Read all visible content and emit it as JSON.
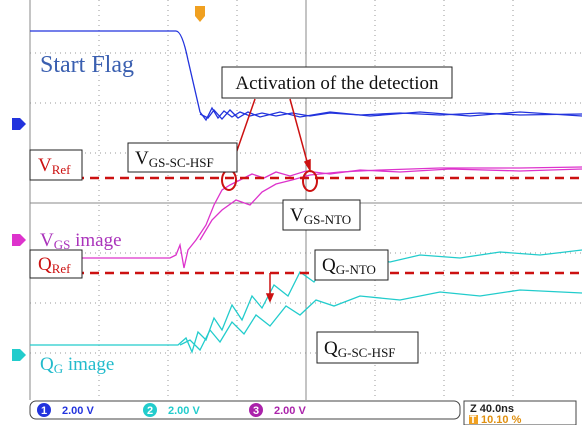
{
  "traces": {
    "start_flag": "Start Flag",
    "activation": "Activation of the detection",
    "v_ref": {
      "base": "V",
      "sub": "Ref"
    },
    "v_gs_sc_hsf": {
      "base": "V",
      "sub": "GS-SC-HSF"
    },
    "v_gs_nto": {
      "base": "V",
      "sub": "GS-NTO"
    },
    "v_gs_image": {
      "base": "V",
      "sub": "GS",
      "rest": " image"
    },
    "q_g_nto": {
      "base": "Q",
      "sub": "G-NTO"
    },
    "q_ref": {
      "base": "Q",
      "sub": "Ref"
    },
    "q_g_sc_hsf": {
      "base": "Q",
      "sub": "G-SC-HSF"
    },
    "q_g_image": {
      "base": "Q",
      "sub": "G",
      "rest": " image"
    }
  },
  "status": {
    "channels": [
      {
        "number": "1",
        "scale": "2.00 V"
      },
      {
        "number": "2",
        "scale": "2.00 V"
      },
      {
        "number": "3",
        "scale": "2.00 V"
      }
    ],
    "timebase": "Z 40.0ns",
    "trigger": "10.10 %",
    "trigger_icon": "T"
  }
}
